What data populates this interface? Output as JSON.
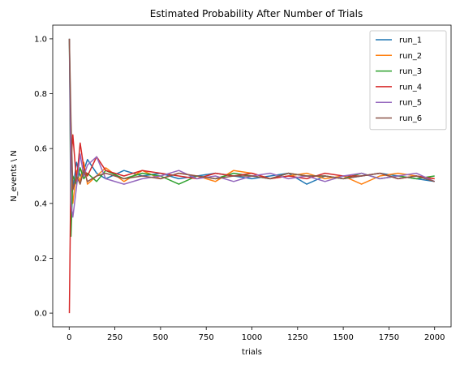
{
  "chart_data": {
    "type": "line",
    "title": "Estimated Probability After Number of Trials",
    "xlabel": "trials",
    "ylabel": "N_events \\ N",
    "xlim": [
      -90,
      2090
    ],
    "ylim": [
      -0.05,
      1.05
    ],
    "x_ticks": [
      0,
      250,
      500,
      750,
      1000,
      1250,
      1500,
      1750,
      2000
    ],
    "y_ticks": [
      0.0,
      0.2,
      0.4,
      0.6,
      0.8,
      1.0
    ],
    "x_tick_labels": [
      "0",
      "250",
      "500",
      "750",
      "1000",
      "1250",
      "1500",
      "1750",
      "2000"
    ],
    "y_tick_labels": [
      "0.0",
      "0.2",
      "0.4",
      "0.6",
      "0.8",
      "1.0"
    ],
    "legend_position": "top-right",
    "grid": false,
    "x": [
      1,
      10,
      20,
      40,
      60,
      80,
      100,
      150,
      200,
      300,
      400,
      500,
      600,
      700,
      800,
      900,
      1000,
      1100,
      1200,
      1300,
      1400,
      1500,
      1600,
      1700,
      1800,
      1900,
      2000
    ],
    "series": [
      {
        "name": "run_1",
        "color": "#1f77b4",
        "values": [
          1.0,
          0.6,
          0.45,
          0.55,
          0.5,
          0.52,
          0.56,
          0.51,
          0.49,
          0.52,
          0.5,
          0.51,
          0.49,
          0.5,
          0.51,
          0.5,
          0.49,
          0.5,
          0.51,
          0.47,
          0.5,
          0.49,
          0.5,
          0.51,
          0.5,
          0.49,
          0.48
        ]
      },
      {
        "name": "run_2",
        "color": "#ff7f0e",
        "values": [
          1.0,
          0.5,
          0.4,
          0.52,
          0.48,
          0.55,
          0.47,
          0.5,
          0.53,
          0.48,
          0.52,
          0.49,
          0.51,
          0.5,
          0.48,
          0.52,
          0.51,
          0.49,
          0.5,
          0.51,
          0.49,
          0.5,
          0.47,
          0.5,
          0.51,
          0.5,
          0.49
        ]
      },
      {
        "name": "run_3",
        "color": "#2ca02c",
        "values": [
          1.0,
          0.28,
          0.5,
          0.47,
          0.53,
          0.49,
          0.51,
          0.48,
          0.52,
          0.49,
          0.51,
          0.5,
          0.47,
          0.5,
          0.49,
          0.51,
          0.5,
          0.49,
          0.51,
          0.5,
          0.5,
          0.49,
          0.51,
          0.49,
          0.5,
          0.49,
          0.5
        ]
      },
      {
        "name": "run_4",
        "color": "#d62728",
        "values": [
          0.0,
          0.55,
          0.65,
          0.48,
          0.62,
          0.53,
          0.5,
          0.57,
          0.52,
          0.5,
          0.52,
          0.51,
          0.5,
          0.49,
          0.51,
          0.5,
          0.51,
          0.49,
          0.5,
          0.49,
          0.51,
          0.5,
          0.5,
          0.51,
          0.49,
          0.5,
          0.49
        ]
      },
      {
        "name": "run_5",
        "color": "#9467bd",
        "values": [
          1.0,
          0.4,
          0.35,
          0.46,
          0.58,
          0.5,
          0.54,
          0.57,
          0.49,
          0.47,
          0.49,
          0.5,
          0.52,
          0.49,
          0.5,
          0.48,
          0.5,
          0.51,
          0.49,
          0.5,
          0.48,
          0.5,
          0.51,
          0.49,
          0.5,
          0.51,
          0.48
        ]
      },
      {
        "name": "run_6",
        "color": "#8c564b",
        "values": [
          1.0,
          0.7,
          0.45,
          0.5,
          0.47,
          0.52,
          0.48,
          0.5,
          0.51,
          0.49,
          0.5,
          0.49,
          0.51,
          0.5,
          0.49,
          0.5,
          0.5,
          0.49,
          0.51,
          0.5,
          0.5,
          0.49,
          0.5,
          0.51,
          0.49,
          0.5,
          0.48
        ]
      }
    ]
  }
}
